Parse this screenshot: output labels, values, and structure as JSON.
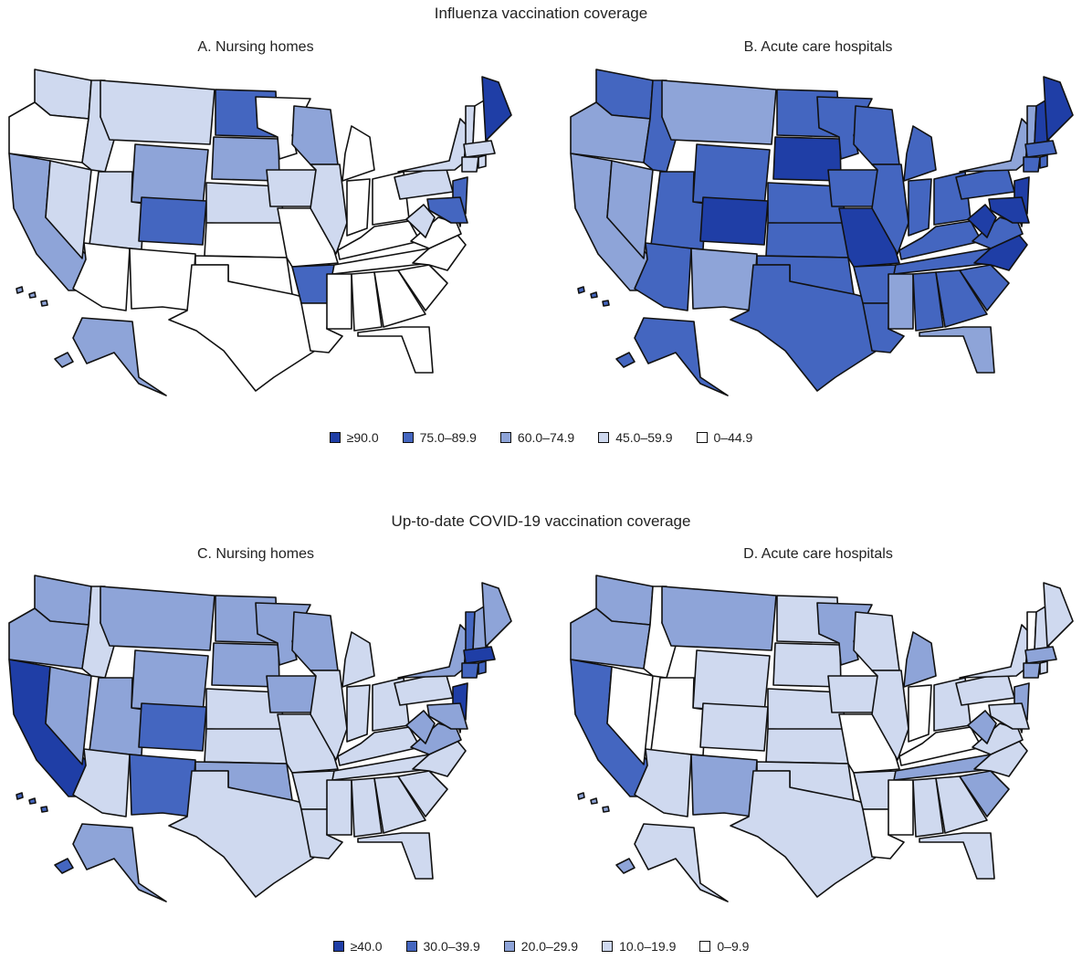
{
  "figure": {
    "top_title": "Influenza vaccination coverage",
    "bottom_title": "Up-to-date COVID-19 vaccination coverage"
  },
  "colors": {
    "c4": "#1f3ea6",
    "c3": "#4466c0",
    "c2": "#8ea4d8",
    "c1": "#cfd9ef",
    "c0": "#ffffff"
  },
  "legends": {
    "influenza": [
      {
        "label": "≥90.0",
        "level": 4
      },
      {
        "label": "75.0–89.9",
        "level": 3
      },
      {
        "label": "60.0–74.9",
        "level": 2
      },
      {
        "label": "45.0–59.9",
        "level": 1
      },
      {
        "label": "0–44.9",
        "level": 0
      }
    ],
    "covid": [
      {
        "label": "≥40.0",
        "level": 4
      },
      {
        "label": "30.0–39.9",
        "level": 3
      },
      {
        "label": "20.0–29.9",
        "level": 2
      },
      {
        "label": "10.0–19.9",
        "level": 1
      },
      {
        "label": "0–9.9",
        "level": 0
      }
    ]
  },
  "panels": [
    {
      "title": "A. Nursing homes",
      "levels": {
        "WA": 1,
        "OR": 0,
        "CA": 2,
        "NV": 1,
        "ID": 1,
        "MT": 1,
        "WY": 2,
        "UT": 1,
        "CO": 3,
        "AZ": 0,
        "NM": 0,
        "ND": 3,
        "SD": 2,
        "NE": 1,
        "KS": 0,
        "OK": 0,
        "TX": 0,
        "MN": 0,
        "IA": 1,
        "MO": 0,
        "AR": 3,
        "LA": 0,
        "WI": 2,
        "IL": 1,
        "MI": 0,
        "IN": 0,
        "OH": 0,
        "KY": 0,
        "TN": 0,
        "MS": 0,
        "AL": 0,
        "GA": 0,
        "FL": 0,
        "SC": 0,
        "NC": 0,
        "VA": 0,
        "WV": 1,
        "PA": 1,
        "NY": 1,
        "VT": 1,
        "NH": 0,
        "ME": 4,
        "MA": 1,
        "RI": 1,
        "CT": 1,
        "NJ": 3,
        "DE": 1,
        "MD": 3,
        "AK": 2,
        "HI": 2
      }
    },
    {
      "title": "B. Acute care hospitals",
      "levels": {
        "WA": 3,
        "OR": 2,
        "CA": 2,
        "NV": 2,
        "ID": 3,
        "MT": 2,
        "WY": 3,
        "UT": 3,
        "CO": 4,
        "AZ": 3,
        "NM": 2,
        "ND": 3,
        "SD": 4,
        "NE": 3,
        "KS": 3,
        "OK": 3,
        "TX": 3,
        "MN": 3,
        "IA": 3,
        "MO": 4,
        "AR": 3,
        "LA": 3,
        "WI": 3,
        "IL": 3,
        "MI": 3,
        "IN": 3,
        "OH": 3,
        "KY": 3,
        "TN": 3,
        "MS": 2,
        "AL": 3,
        "GA": 3,
        "FL": 2,
        "SC": 3,
        "NC": 4,
        "VA": 3,
        "WV": 4,
        "PA": 3,
        "NY": 2,
        "VT": 2,
        "NH": 4,
        "ME": 4,
        "MA": 3,
        "RI": 3,
        "CT": 3,
        "NJ": 4,
        "DE": 3,
        "MD": 4,
        "AK": 3,
        "HI": 3
      }
    },
    {
      "title": "C. Nursing homes",
      "levels": {
        "WA": 2,
        "OR": 2,
        "CA": 4,
        "NV": 2,
        "ID": 1,
        "MT": 2,
        "WY": 2,
        "UT": 2,
        "CO": 3,
        "AZ": 1,
        "NM": 3,
        "ND": 2,
        "SD": 2,
        "NE": 1,
        "KS": 1,
        "OK": 2,
        "TX": 1,
        "MN": 2,
        "IA": 2,
        "MO": 1,
        "AR": 1,
        "LA": 1,
        "WI": 2,
        "IL": 1,
        "MI": 1,
        "IN": 1,
        "OH": 1,
        "KY": 1,
        "TN": 1,
        "MS": 1,
        "AL": 1,
        "GA": 1,
        "FL": 1,
        "SC": 1,
        "NC": 1,
        "VA": 2,
        "WV": 2,
        "PA": 1,
        "NY": 2,
        "VT": 3,
        "NH": 2,
        "ME": 2,
        "MA": 4,
        "RI": 3,
        "CT": 3,
        "NJ": 4,
        "DE": 2,
        "MD": 2,
        "AK": 2,
        "HI": 3
      }
    },
    {
      "title": "D. Acute care hospitals",
      "levels": {
        "WA": 2,
        "OR": 2,
        "CA": 3,
        "NV": 0,
        "ID": 0,
        "MT": 2,
        "WY": 1,
        "UT": 0,
        "CO": 1,
        "AZ": 1,
        "NM": 2,
        "ND": 1,
        "SD": 1,
        "NE": 1,
        "KS": 1,
        "OK": 1,
        "TX": 1,
        "MN": 2,
        "IA": 1,
        "MO": 0,
        "AR": 1,
        "LA": 0,
        "WI": 1,
        "IL": 1,
        "MI": 2,
        "IN": 0,
        "OH": 1,
        "KY": 0,
        "TN": 2,
        "MS": 0,
        "AL": 1,
        "GA": 1,
        "FL": 1,
        "SC": 2,
        "NC": 1,
        "VA": 1,
        "WV": 2,
        "PA": 1,
        "NY": 1,
        "VT": 0,
        "NH": 1,
        "ME": 1,
        "MA": 2,
        "RI": 1,
        "CT": 2,
        "NJ": 2,
        "DE": 1,
        "MD": 1,
        "AK": 1,
        "HI": 2
      }
    }
  ]
}
